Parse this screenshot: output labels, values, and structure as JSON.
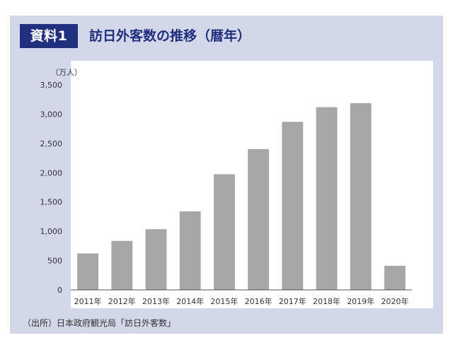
{
  "header": {
    "badge": "資料1",
    "title": "訪日外客数の推移（暦年）"
  },
  "chart_data": {
    "type": "bar",
    "unit_label": "（万人）",
    "categories": [
      "2011年",
      "2012年",
      "2013年",
      "2014年",
      "2015年",
      "2016年",
      "2017年",
      "2018年",
      "2019年",
      "2020年"
    ],
    "values": [
      622,
      836,
      1036,
      1341,
      1974,
      2404,
      2869,
      3119,
      3188,
      412
    ],
    "ylim": [
      0,
      3500
    ],
    "yticks": [
      0,
      500,
      1000,
      1500,
      2000,
      2500,
      3000,
      3500
    ],
    "ytick_labels": [
      "0",
      "500",
      "1,000",
      "1,500",
      "2,000",
      "2,500",
      "3,000",
      "3,500"
    ],
    "bar_color": "#a6a6a6",
    "grid": false
  },
  "source": "（出所）日本政府観光局「訪日外客数」"
}
